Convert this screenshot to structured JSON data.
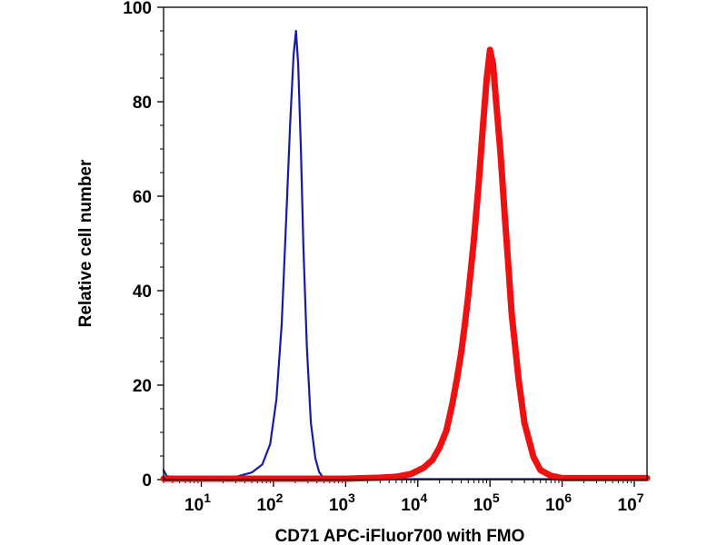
{
  "chart_data": {
    "type": "line",
    "subtype": "flow-cytometry-histogram",
    "title": "",
    "xlabel": "CD71 APC-iFluor700 with FMO",
    "ylabel": "Relative cell number",
    "x_scale": "log10",
    "xlim": [
      3,
      15000000
    ],
    "ylim": [
      0,
      100
    ],
    "grid": false,
    "legend": "none",
    "y_ticks": [
      0,
      20,
      40,
      60,
      80,
      100
    ],
    "x_ticks": [
      {
        "base": "10",
        "exp": "1",
        "value": 10
      },
      {
        "base": "10",
        "exp": "2",
        "value": 100
      },
      {
        "base": "10",
        "exp": "3",
        "value": 1000
      },
      {
        "base": "10",
        "exp": "4",
        "value": 10000
      },
      {
        "base": "10",
        "exp": "5",
        "value": 100000
      },
      {
        "base": "10",
        "exp": "6",
        "value": 1000000
      },
      {
        "base": "10",
        "exp": "7",
        "value": 10000000
      }
    ],
    "series": [
      {
        "color": "#1a1aa6",
        "line_style": "thin",
        "x": [
          3,
          3.3,
          4,
          6,
          10,
          20,
          30,
          50,
          70,
          90,
          110,
          130,
          150,
          170,
          190,
          205,
          220,
          240,
          260,
          290,
          330,
          380,
          430,
          480,
          550,
          700,
          1000,
          3000,
          100000,
          15000000
        ],
        "y": [
          2,
          0.8,
          0.3,
          0.2,
          0.1,
          0.3,
          0.6,
          1.5,
          3.2,
          7.5,
          17,
          33,
          55,
          75,
          90,
          95,
          88,
          70,
          49,
          28,
          12,
          4.5,
          1.6,
          0.6,
          0.3,
          0.2,
          0.1,
          0.1,
          0.1,
          0.1
        ]
      },
      {
        "color": "#ee1111",
        "line_style": "thick",
        "x": [
          3,
          1000,
          3000,
          5000,
          8000,
          12000,
          16000,
          20000,
          25000,
          30000,
          35000,
          40000,
          45000,
          50000,
          60000,
          70000,
          80000,
          90000,
          100000,
          110000,
          120000,
          140000,
          160000,
          180000,
          200000,
          250000,
          300000,
          400000,
          500000,
          700000,
          1000000,
          15000000
        ],
        "y": [
          0.2,
          0.2,
          0.4,
          0.6,
          1.2,
          2.5,
          4.2,
          6.8,
          10.5,
          16,
          21.5,
          27,
          33,
          39,
          51,
          63,
          75,
          85,
          91,
          88,
          81,
          69,
          56,
          45,
          35,
          21,
          12,
          4.8,
          2,
          0.8,
          0.3,
          0.3
        ]
      }
    ]
  }
}
